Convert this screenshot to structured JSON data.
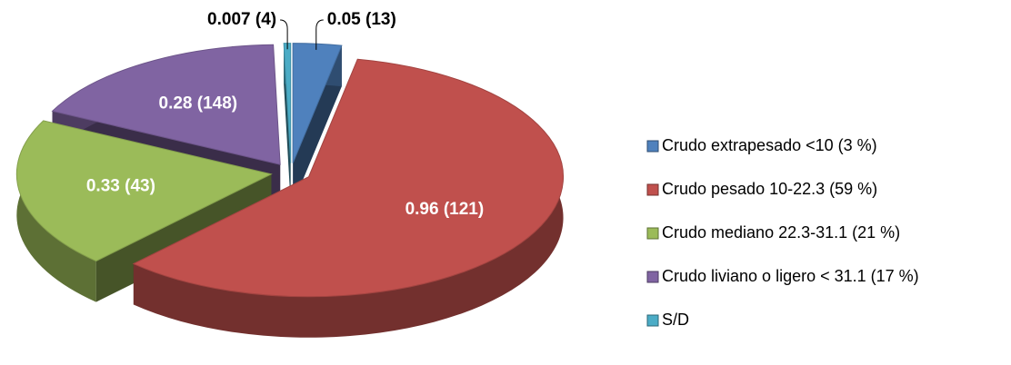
{
  "chart_data": {
    "type": "pie3d",
    "categories": [
      "Crudo extrapesado <10 (3 %)",
      "Crudo pesado 10-22.3 (59 %)",
      "Crudo mediano 22.3-31.1 (21 %)",
      "Crudo liviano o ligero < 31.1 (17 %)",
      "S/D"
    ],
    "values": [
      0.05,
      0.96,
      0.33,
      0.28,
      0.007
    ],
    "value_labels": [
      "0.05 (13)",
      "0.96 (121)",
      "0.33 (43)",
      "0.28 (148)",
      "0.007 (4)"
    ],
    "colors": [
      "#4f81bd",
      "#c0504d",
      "#9bbb59",
      "#8064a2",
      "#4bacc6"
    ],
    "legend": "right"
  }
}
